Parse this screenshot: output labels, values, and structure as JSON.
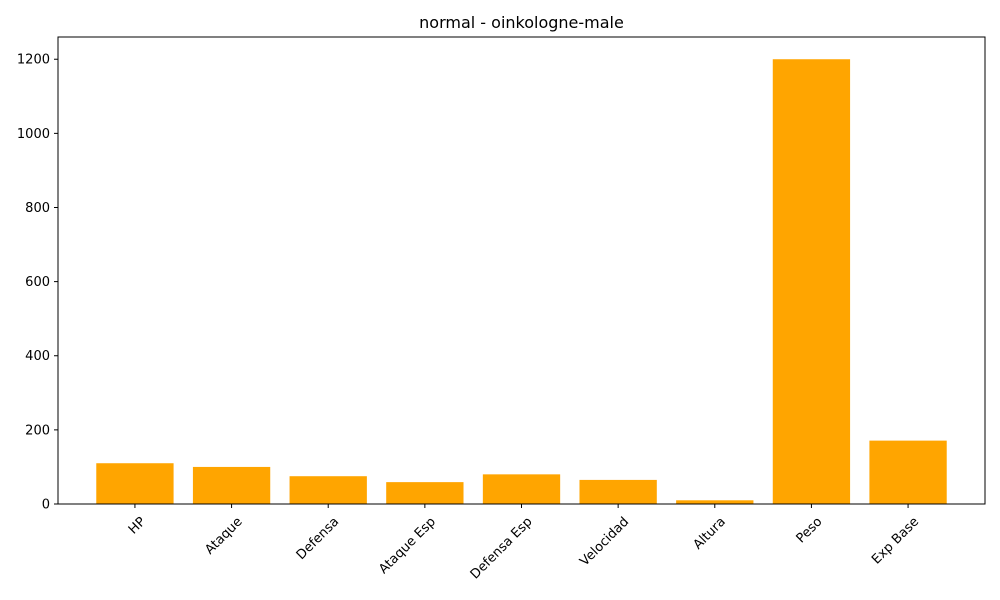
{
  "chart_data": {
    "type": "bar",
    "title": "normal - oinkologne-male",
    "xlabel": "",
    "ylabel": "",
    "categories": [
      "HP",
      "Ataque",
      "Defensa",
      "Ataque Esp",
      "Defensa Esp",
      "Velocidad",
      "Altura",
      "Peso",
      "Exp Base"
    ],
    "values": [
      110,
      100,
      75,
      59,
      80,
      65,
      10,
      1200,
      171
    ],
    "ylim": [
      0,
      1260
    ],
    "yticks": [
      0,
      200,
      400,
      600,
      800,
      1000,
      1200
    ],
    "bar_color": "#ffa500",
    "grid": false,
    "legend": "none",
    "xtick_rotation": 45
  }
}
